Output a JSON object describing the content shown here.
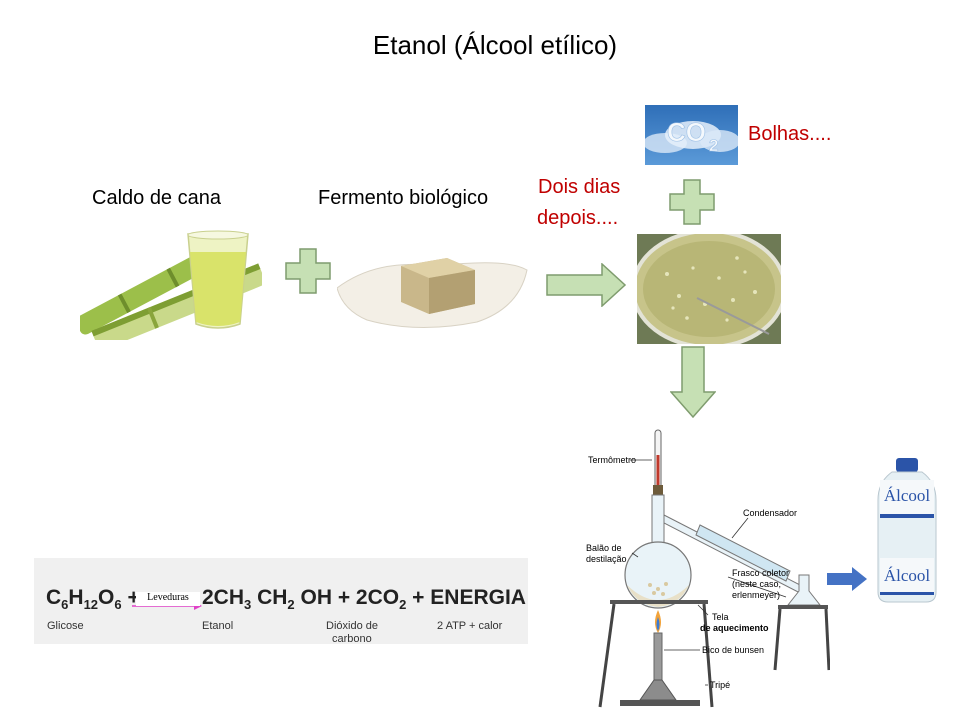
{
  "title": "Etanol (Álcool etílico)",
  "labels": {
    "caldo": "Caldo de cana",
    "fermento": "Fermento biológico",
    "dois_dias_1": "Dois dias",
    "dois_dias_2": "depois....",
    "bolhas": "Bolhas...."
  },
  "co2_image_text": "CO2",
  "equation": {
    "reactant": "C6H12O6",
    "catalyst": "Leveduras",
    "product1": "2CH3 CH2 OH",
    "plus": "+",
    "product2": "2CO2",
    "product3": "ENERGIA",
    "sub_glicose": "Glicose",
    "sub_etanol": "Etanol",
    "sub_dioxido_1": "Dióxido de",
    "sub_dioxido_2": "carbono",
    "sub_energia": "2 ATP + calor"
  },
  "distillation": {
    "termometro": "Termômetro",
    "condensador": "Condensador",
    "balao_1": "Balão de",
    "balao_2": "destilação",
    "frasco_1": "Frasco coletor",
    "frasco_2": "(neste caso,",
    "frasco_3": "erlenmeyer)",
    "tela_1": "Tela",
    "tela_2": "de aquecimento",
    "bico": "Bico de bunsen",
    "tripe": "Tripé"
  },
  "bottle_label": "Álcool",
  "colors": {
    "shape_fill": "#c6e0b4",
    "shape_stroke": "#7f9c6e",
    "accent_red": "#c00000",
    "blue_arrow": "#4472c4"
  }
}
